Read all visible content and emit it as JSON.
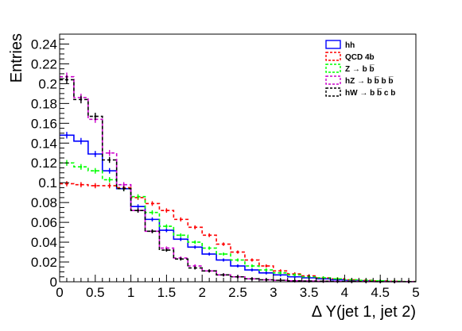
{
  "chart_data": {
    "type": "histogram",
    "xlabel": "Δ Y(jet 1, jet 2)",
    "ylabel": "Entries",
    "xlim": [
      0,
      5
    ],
    "ylim": [
      0,
      0.25
    ],
    "grid": false,
    "legend_placement": "top-right",
    "x_ticks": [
      0,
      0.5,
      1,
      1.5,
      2,
      2.5,
      3,
      3.5,
      4,
      4.5,
      5
    ],
    "x_tick_labels": [
      "0",
      "0.5",
      "1",
      "1.5",
      "2",
      "2.5",
      "3",
      "3.5",
      "4",
      "4.5",
      "5"
    ],
    "y_ticks": [
      0,
      0.02,
      0.04,
      0.06,
      0.08,
      0.1,
      0.12,
      0.14,
      0.16,
      0.18,
      0.2,
      0.22,
      0.24
    ],
    "y_tick_labels": [
      "0",
      "0.02",
      "0.04",
      "0.06",
      "0.08",
      "0.1",
      "0.12",
      "0.14",
      "0.16",
      "0.18",
      "0.2",
      "0.22",
      "0.24"
    ],
    "bin_edges": [
      0,
      0.2,
      0.4,
      0.6,
      0.8,
      1.0,
      1.2,
      1.4,
      1.6,
      1.8,
      2.0,
      2.2,
      2.4,
      2.6,
      2.8,
      3.0,
      3.2,
      3.4,
      3.6,
      3.8,
      4.0,
      4.2,
      4.4,
      4.6,
      4.8,
      5.0
    ],
    "series": [
      {
        "name": "hh",
        "color": "#0000ff",
        "style": "solid",
        "values": [
          0.148,
          0.142,
          0.129,
          0.112,
          0.094,
          0.076,
          0.063,
          0.052,
          0.043,
          0.035,
          0.028,
          0.022,
          0.016,
          0.012,
          0.009,
          0.007,
          0.005,
          0.004,
          0.003,
          0.002,
          0.0015,
          0.001,
          0.0007,
          0.0004,
          0.0002
        ]
      },
      {
        "name": "QCD 4b",
        "color": "#ff0000",
        "style": "dashed",
        "values": [
          0.099,
          0.098,
          0.097,
          0.097,
          0.095,
          0.085,
          0.079,
          0.072,
          0.063,
          0.055,
          0.047,
          0.038,
          0.03,
          0.022,
          0.016,
          0.011,
          0.008,
          0.006,
          0.004,
          0.003,
          0.002,
          0.0015,
          0.001,
          0.0006,
          0.0003
        ]
      },
      {
        "name": "Z → b b̅",
        "color": "#00ff00",
        "style": "dashed",
        "values": [
          0.12,
          0.116,
          0.112,
          0.103,
          0.094,
          0.086,
          0.07,
          0.056,
          0.047,
          0.04,
          0.034,
          0.028,
          0.022,
          0.016,
          0.012,
          0.009,
          0.007,
          0.005,
          0.004,
          0.003,
          0.002,
          0.0015,
          0.001,
          0.0006,
          0.0003
        ]
      },
      {
        "name": "hZ → b b̅ b b̅",
        "color": "#cc00cc",
        "style": "dashed",
        "values": [
          0.207,
          0.186,
          0.164,
          0.13,
          0.098,
          0.072,
          0.051,
          0.034,
          0.024,
          0.016,
          0.011,
          0.007,
          0.005,
          0.003,
          0.002,
          0.0015,
          0.001,
          0.0008,
          0.0006,
          0.0004,
          0.0003,
          0.0002,
          0.0001,
          0.0001,
          0.0001
        ]
      },
      {
        "name": "hW → b b̅ c b",
        "color": "#000000",
        "style": "dashed",
        "values": [
          0.204,
          0.184,
          0.167,
          0.123,
          0.094,
          0.072,
          0.051,
          0.032,
          0.023,
          0.014,
          0.011,
          0.007,
          0.005,
          0.003,
          0.002,
          0.0015,
          0.001,
          0.0008,
          0.0006,
          0.0004,
          0.0003,
          0.0002,
          0.0001,
          0.0001,
          0.0001
        ]
      }
    ]
  }
}
